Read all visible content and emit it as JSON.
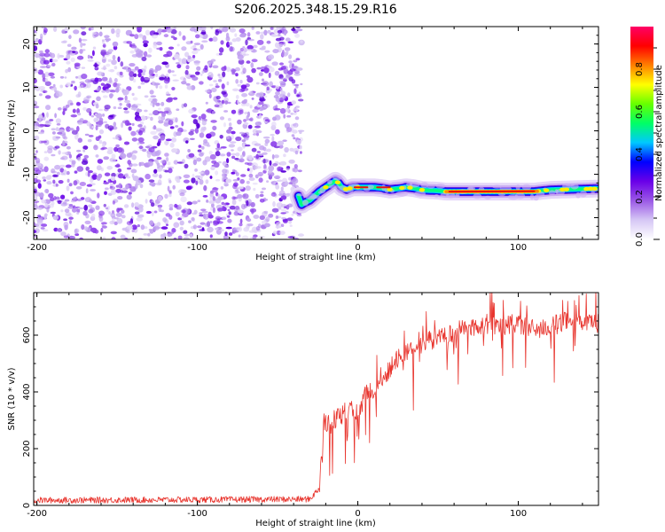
{
  "title": "S206.2025.348.15.29.R16",
  "chart_data": [
    {
      "type": "heatmap",
      "name": "spectrogram",
      "xlabel": "Height of straight line (km)",
      "ylabel": "Frequency (Hz)",
      "xlim": [
        -202,
        150
      ],
      "ylim": [
        -25,
        24
      ],
      "xticks": [
        -200,
        -100,
        0,
        100
      ],
      "yticks": [
        -20,
        -10,
        0,
        10,
        20
      ],
      "noise_region_x": [
        -202,
        -35
      ],
      "signal_band": {
        "x": [
          -37,
          -35,
          -33,
          -30,
          -27,
          -24,
          -22,
          -20,
          -18,
          -16,
          -14,
          -12,
          -10,
          -7,
          -3,
          0,
          5,
          10,
          15,
          20,
          25,
          30,
          35,
          40,
          50,
          55,
          60,
          70,
          80,
          90,
          100,
          110,
          120,
          130,
          140,
          150
        ],
        "y": [
          -15,
          -17,
          -16.5,
          -16,
          -15,
          -14,
          -13.5,
          -13,
          -12.5,
          -12,
          -11.5,
          -12,
          -13,
          -13.5,
          -13,
          -13,
          -13,
          -13,
          -13.2,
          -13.5,
          -13.3,
          -13,
          -13.2,
          -13.6,
          -13.8,
          -14,
          -14,
          -14,
          -14,
          -14,
          -14,
          -14,
          -13.6,
          -13.5,
          -13.4,
          -13.3
        ],
        "peak_x_range": [
          55,
          112
        ]
      },
      "colorbar": {
        "label": "Normalized spectral amplitude",
        "range": [
          0,
          1
        ],
        "ticks": [
          "0.0",
          "0.2",
          "0.4",
          "0.6",
          "0.8"
        ],
        "colors": [
          "#ffffff",
          "#d6c7f5",
          "#9b59e6",
          "#6a00e8",
          "#0000ff",
          "#00c8ff",
          "#00ff66",
          "#66ff00",
          "#ffff00",
          "#ff8000",
          "#ff0000",
          "#ff0066"
        ]
      }
    },
    {
      "type": "line",
      "name": "snr",
      "xlabel": "Height of straight line (km)",
      "ylabel": "SNR (10 * v/v)",
      "xlim": [
        -202,
        150
      ],
      "ylim": [
        0,
        750
      ],
      "xticks": [
        -200,
        -100,
        0,
        100
      ],
      "yticks": [
        0,
        200,
        400,
        600
      ],
      "color": "#e8352e",
      "series": [
        {
          "name": "snr-mean",
          "x": [
            -202,
            -100,
            -30,
            -24,
            -22,
            -20,
            -18,
            -15,
            -10,
            -5,
            0,
            5,
            10,
            15,
            20,
            25,
            30,
            35,
            40,
            45,
            50,
            55,
            60,
            65,
            70,
            80,
            90,
            100,
            110,
            120,
            130,
            140,
            150
          ],
          "y": [
            18,
            20,
            22,
            60,
            270,
            300,
            280,
            300,
            320,
            340,
            330,
            390,
            410,
            440,
            480,
            520,
            540,
            560,
            570,
            580,
            590,
            600,
            610,
            620,
            625,
            640,
            635,
            640,
            620,
            630,
            650,
            645,
            640
          ]
        }
      ]
    }
  ]
}
